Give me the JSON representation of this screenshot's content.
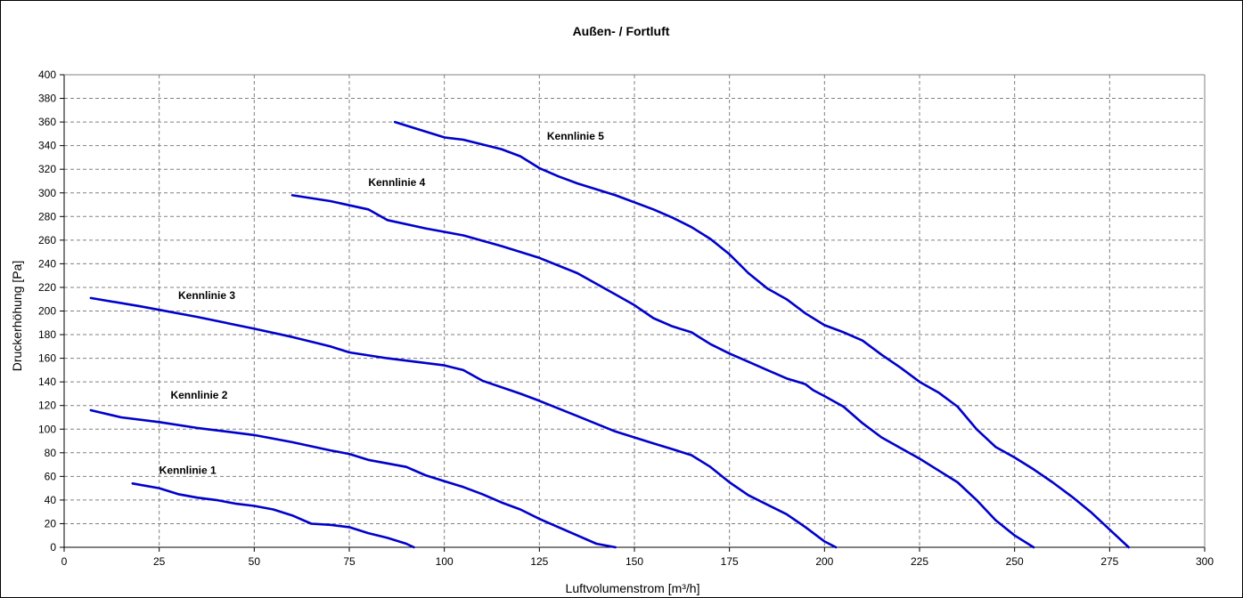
{
  "chart_data": {
    "type": "line",
    "title": "Außen- / Fortluft",
    "xlabel": "Luftvolumenstrom [m³/h]",
    "ylabel": "Druckerhöhung [Pa]",
    "xlim": [
      0,
      300
    ],
    "ylim": [
      0,
      400
    ],
    "x_ticks": [
      "0",
      "25",
      "50",
      "75",
      "100",
      "125",
      "150",
      "175",
      "200",
      "225",
      "250",
      "275",
      "300"
    ],
    "y_ticks": [
      "0",
      "20",
      "40",
      "60",
      "80",
      "100",
      "120",
      "140",
      "160",
      "180",
      "200",
      "220",
      "240",
      "260",
      "280",
      "300",
      "320",
      "340",
      "360",
      "380",
      "400"
    ],
    "grid": true,
    "line_color": "#0000cc",
    "series": [
      {
        "name": "Kennlinie 1",
        "points": [
          [
            18,
            54
          ],
          [
            25,
            50
          ],
          [
            30,
            45
          ],
          [
            35,
            42
          ],
          [
            40,
            40
          ],
          [
            45,
            37
          ],
          [
            50,
            35
          ],
          [
            55,
            32
          ],
          [
            60,
            27
          ],
          [
            65,
            20
          ],
          [
            70,
            19
          ],
          [
            75,
            17
          ],
          [
            80,
            12
          ],
          [
            85,
            8
          ],
          [
            90,
            3
          ],
          [
            92,
            0
          ]
        ]
      },
      {
        "name": "Kennlinie 2",
        "points": [
          [
            7,
            116
          ],
          [
            15,
            110
          ],
          [
            25,
            106
          ],
          [
            35,
            101
          ],
          [
            45,
            97
          ],
          [
            50,
            95
          ],
          [
            60,
            89
          ],
          [
            70,
            82
          ],
          [
            75,
            79
          ],
          [
            80,
            74
          ],
          [
            90,
            68
          ],
          [
            95,
            61
          ],
          [
            100,
            56
          ],
          [
            105,
            51
          ],
          [
            110,
            45
          ],
          [
            115,
            38
          ],
          [
            120,
            32
          ],
          [
            125,
            24
          ],
          [
            130,
            17
          ],
          [
            135,
            10
          ],
          [
            140,
            3
          ],
          [
            145,
            0
          ]
        ]
      },
      {
        "name": "Kennlinie 3",
        "points": [
          [
            7,
            211
          ],
          [
            20,
            204
          ],
          [
            35,
            195
          ],
          [
            50,
            185
          ],
          [
            60,
            178
          ],
          [
            70,
            170
          ],
          [
            75,
            165
          ],
          [
            85,
            160
          ],
          [
            100,
            154
          ],
          [
            105,
            150
          ],
          [
            110,
            141
          ],
          [
            120,
            130
          ],
          [
            125,
            124
          ],
          [
            135,
            111
          ],
          [
            145,
            98
          ],
          [
            155,
            88
          ],
          [
            160,
            83
          ],
          [
            165,
            78
          ],
          [
            170,
            68
          ],
          [
            175,
            55
          ],
          [
            180,
            44
          ],
          [
            185,
            36
          ],
          [
            190,
            28
          ],
          [
            195,
            17
          ],
          [
            200,
            5
          ],
          [
            203,
            0
          ]
        ]
      },
      {
        "name": "Kennlinie 4",
        "points": [
          [
            60,
            298
          ],
          [
            70,
            293
          ],
          [
            80,
            286
          ],
          [
            85,
            277
          ],
          [
            95,
            270
          ],
          [
            105,
            264
          ],
          [
            115,
            255
          ],
          [
            125,
            245
          ],
          [
            135,
            232
          ],
          [
            145,
            214
          ],
          [
            150,
            205
          ],
          [
            155,
            194
          ],
          [
            160,
            187
          ],
          [
            165,
            182
          ],
          [
            170,
            172
          ],
          [
            175,
            164
          ],
          [
            180,
            157
          ],
          [
            185,
            150
          ],
          [
            190,
            143
          ],
          [
            195,
            138
          ],
          [
            197,
            133
          ],
          [
            200,
            128
          ],
          [
            205,
            119
          ],
          [
            210,
            105
          ],
          [
            215,
            93
          ],
          [
            220,
            84
          ],
          [
            225,
            75
          ],
          [
            230,
            65
          ],
          [
            235,
            55
          ],
          [
            240,
            40
          ],
          [
            245,
            23
          ],
          [
            250,
            10
          ],
          [
            255,
            0
          ]
        ]
      },
      {
        "name": "Kennlinie 5",
        "points": [
          [
            87,
            360
          ],
          [
            95,
            352
          ],
          [
            100,
            347
          ],
          [
            105,
            345
          ],
          [
            115,
            337
          ],
          [
            120,
            331
          ],
          [
            125,
            321
          ],
          [
            130,
            314
          ],
          [
            135,
            308
          ],
          [
            145,
            298
          ],
          [
            155,
            286
          ],
          [
            160,
            279
          ],
          [
            165,
            271
          ],
          [
            170,
            261
          ],
          [
            175,
            248
          ],
          [
            180,
            232
          ],
          [
            185,
            219
          ],
          [
            190,
            210
          ],
          [
            195,
            198
          ],
          [
            200,
            188
          ],
          [
            205,
            182
          ],
          [
            210,
            175
          ],
          [
            215,
            163
          ],
          [
            220,
            152
          ],
          [
            225,
            140
          ],
          [
            230,
            131
          ],
          [
            235,
            119
          ],
          [
            240,
            100
          ],
          [
            245,
            85
          ],
          [
            250,
            76
          ],
          [
            255,
            66
          ],
          [
            260,
            55
          ],
          [
            265,
            43
          ],
          [
            270,
            30
          ],
          [
            275,
            15
          ],
          [
            280,
            0
          ]
        ]
      }
    ],
    "annotations": [
      {
        "text": "Kennlinie 1",
        "x": 25,
        "y": 65
      },
      {
        "text": "Kennlinie 2",
        "x": 28,
        "y": 129
      },
      {
        "text": "Kennlinie 3",
        "x": 30,
        "y": 213
      },
      {
        "text": "Kennlinie 4",
        "x": 80,
        "y": 309
      },
      {
        "text": "Kennlinie 5",
        "x": 127,
        "y": 348
      }
    ]
  }
}
